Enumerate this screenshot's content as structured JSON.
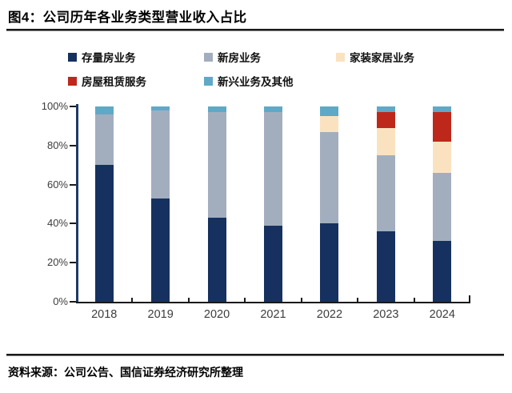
{
  "figure": {
    "title": "图4：公司历年各业务类型营业收入占比",
    "source": "资料来源：公司公告、国信证券经济研究所整理"
  },
  "chart_data": {
    "type": "bar",
    "stacked": true,
    "title": "公司历年各业务类型营业收入占比",
    "xlabel": "",
    "ylabel": "",
    "ylim": [
      0,
      100
    ],
    "grid": false,
    "legend_position": "top",
    "yticks": [
      "100%",
      "80%",
      "60%",
      "40%",
      "20%",
      "0%"
    ],
    "categories": [
      "2018",
      "2019",
      "2020",
      "2021",
      "2022",
      "2023",
      "2024"
    ],
    "series": [
      {
        "name": "存量房业务",
        "color": "#16315F",
        "values": [
          70,
          53,
          43,
          39,
          40,
          36,
          31
        ]
      },
      {
        "name": "新房业务",
        "color": "#A2AEBE",
        "values": [
          26,
          45,
          54,
          58,
          47,
          39,
          35
        ]
      },
      {
        "name": "家装家居业务",
        "color": "#FAE2C1",
        "values": [
          0,
          0,
          0,
          0,
          8,
          14,
          16
        ]
      },
      {
        "name": "房屋租赁服务",
        "color": "#BE281B",
        "values": [
          0,
          0,
          0,
          0,
          0,
          8,
          15
        ]
      },
      {
        "name": "新兴业务及其他",
        "color": "#5FA9C7",
        "values": [
          4,
          2,
          3,
          3,
          5,
          3,
          3
        ]
      }
    ],
    "axis_colors": {
      "y_axis": "#1e3a66",
      "x_axis": "#1a1a1a"
    }
  }
}
